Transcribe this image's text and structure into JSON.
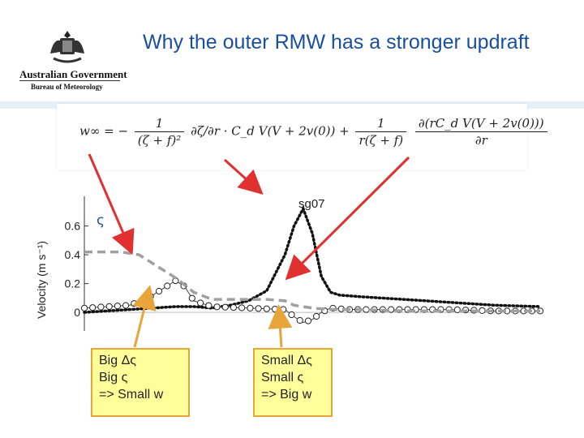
{
  "logo": {
    "line1": "Australian Government",
    "line2": "Bureau of Meteorology",
    "icon": "coat-of-arms-icon"
  },
  "title": "Why the outer RMW has a stronger updraft",
  "equation": {
    "lhs": "w∞ = −",
    "t1_num": "1",
    "t1_den": "(ζ + f)²",
    "t1_body": "∂ζ/∂r · C_d V(V + 2v(0)) +",
    "t2_num": "1",
    "t2_den": "r(ζ + f)",
    "t2_body_num": "∂(rC_d V(V + 2v(0)))",
    "t2_body_den": "∂r"
  },
  "zeta_label": "ς",
  "notes": [
    {
      "lines": [
        "Big Δς",
        "Big ς",
        "=> Small w"
      ]
    },
    {
      "lines": [
        "Small Δς",
        "Small ς",
        "=> Big w"
      ]
    }
  ],
  "colors": {
    "title": "#1a4f9c",
    "arrow_red": "#e03030",
    "arrow_orange": "#e8a53a",
    "note_bg": "#ffff99"
  },
  "chart_data": {
    "type": "line",
    "title": "sg07",
    "ylabel": "Velocity (m s⁻¹)",
    "xlabel": "",
    "ylim": [
      -0.05,
      0.75
    ],
    "yticks": [
      "0",
      "0.2",
      "0.4",
      "0.6"
    ],
    "ytick_values": [
      0,
      0.2,
      0.4,
      0.6
    ],
    "xlim": [
      0,
      100
    ],
    "series": [
      {
        "style": "dotted-black",
        "x": [
          0,
          10,
          20,
          24,
          28,
          32,
          36,
          40,
          44,
          46,
          48,
          50,
          52,
          54,
          56,
          60,
          70,
          80,
          90,
          100
        ],
        "y": [
          0.0,
          0.02,
          0.04,
          0.04,
          0.03,
          0.05,
          0.08,
          0.15,
          0.4,
          0.6,
          0.72,
          0.55,
          0.25,
          0.14,
          0.12,
          0.11,
          0.09,
          0.07,
          0.05,
          0.04
        ]
      },
      {
        "style": "open-circles",
        "x": [
          0,
          10,
          14,
          18,
          20,
          22,
          24,
          28,
          36,
          44,
          46,
          48,
          50,
          52,
          54,
          58,
          70,
          80,
          90,
          100
        ],
        "y": [
          0.03,
          0.05,
          0.1,
          0.18,
          0.22,
          0.18,
          0.08,
          0.04,
          0.03,
          0.02,
          -0.03,
          -0.07,
          -0.05,
          0.0,
          0.03,
          0.02,
          0.02,
          0.02,
          0.01,
          0.01
        ]
      },
      {
        "style": "dashed-gray",
        "x": [
          0,
          8,
          12,
          16,
          20,
          24,
          28,
          40,
          44,
          46,
          50,
          54,
          60,
          70,
          100
        ],
        "y": [
          0.42,
          0.42,
          0.4,
          0.32,
          0.24,
          0.14,
          0.09,
          0.09,
          0.08,
          0.05,
          0.03,
          0.02,
          0.02,
          0.01,
          0.01
        ]
      }
    ]
  }
}
